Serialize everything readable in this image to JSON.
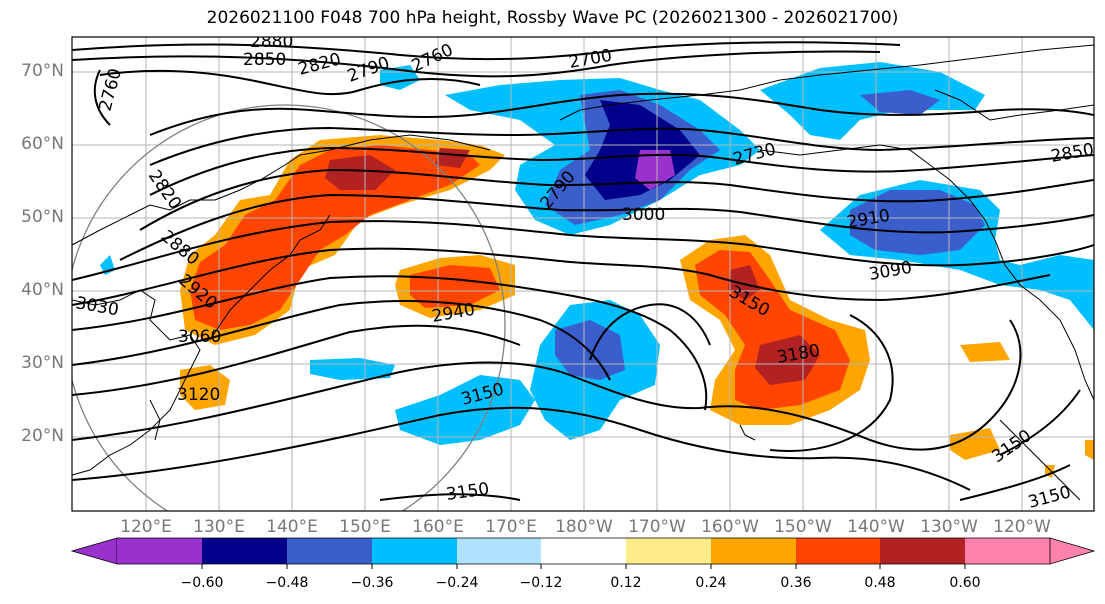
{
  "title": "2026021100 F048 700 hPa height, Rossby Wave PC (2026021300 - 2026021700)",
  "lat_labels": [
    "70°N",
    "60°N",
    "50°N",
    "40°N",
    "30°N",
    "20°N"
  ],
  "lon_labels": [
    "120°E",
    "130°E",
    "140°E",
    "150°E",
    "160°E",
    "170°E",
    "180°W",
    "170°W",
    "160°W",
    "150°W",
    "140°W",
    "130°W",
    "120°W"
  ],
  "contour_labels": [
    "2880",
    "2850",
    "2820",
    "2790",
    "2760",
    "2700",
    "2760",
    "2820",
    "2880",
    "2920",
    "3030",
    "3060",
    "3120",
    "2790",
    "3000",
    "2730",
    "2850",
    "2910",
    "3090",
    "3150",
    "3180",
    "2940",
    "3150",
    "3150",
    "3150",
    "3150"
  ],
  "colorbar": {
    "colors": [
      "#9932cc",
      "#00008b",
      "#3a5fcd",
      "#00bfff",
      "#b0e2ff",
      "#ffffff",
      "#ffec8b",
      "#ffa500",
      "#ff4500",
      "#b22222",
      "#ff82ab"
    ],
    "ticks": [
      "−0.60",
      "−0.48",
      "−0.36",
      "−0.24",
      "−0.12",
      "0.12",
      "0.24",
      "0.36",
      "0.48",
      "0.60"
    ]
  }
}
